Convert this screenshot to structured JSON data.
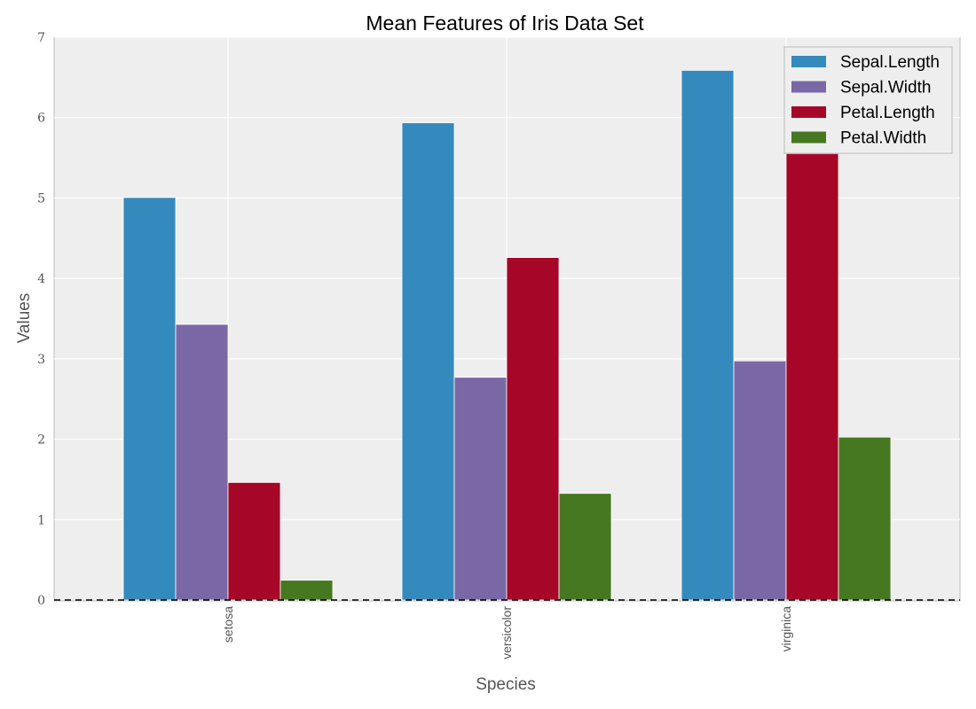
{
  "chart_data": {
    "type": "bar",
    "title": "Mean Features of Iris Data Set",
    "xlabel": "Species",
    "ylabel": "Values",
    "categories": [
      "setosa",
      "versicolor",
      "virginica"
    ],
    "series": [
      {
        "name": "Sepal.Length",
        "color": "#348ABD",
        "values": [
          5.006,
          5.936,
          6.588
        ]
      },
      {
        "name": "Sepal.Width",
        "color": "#7A68A6",
        "values": [
          3.428,
          2.77,
          2.974
        ]
      },
      {
        "name": "Petal.Length",
        "color": "#A60628",
        "values": [
          1.462,
          4.26,
          5.552
        ]
      },
      {
        "name": "Petal.Width",
        "color": "#467821",
        "values": [
          0.246,
          1.326,
          2.026
        ]
      }
    ],
    "ylim": [
      0,
      7
    ],
    "yticks": [
      "0",
      "1",
      "2",
      "3",
      "4",
      "5",
      "6",
      "7"
    ],
    "grid": true,
    "legend_position": "top-right",
    "zero_line": "dashed"
  }
}
